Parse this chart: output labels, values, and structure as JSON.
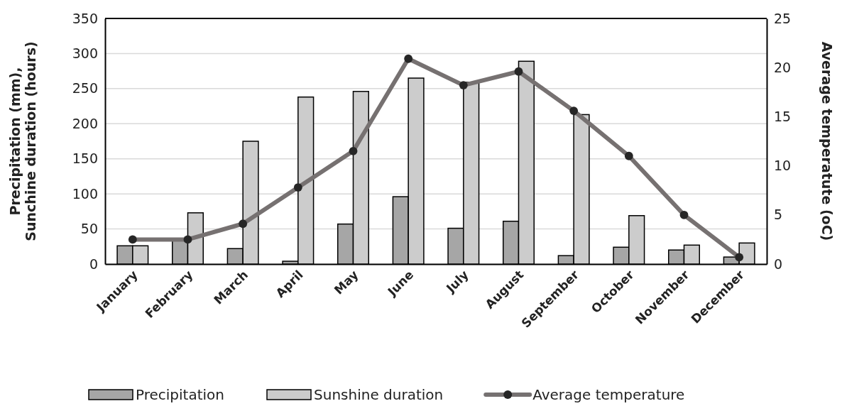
{
  "chart_data": {
    "type": "bar",
    "categories": [
      "January",
      "February",
      "March",
      "April",
      "May",
      "June",
      "July",
      "August",
      "September",
      "October",
      "November",
      "December"
    ],
    "ylabel": "Precipitation (mm), Sunchine duration (hours)",
    "y2label": "Average temperatute (oC)",
    "ylim": [
      0,
      350
    ],
    "yticks": [
      0,
      50,
      100,
      150,
      200,
      250,
      300,
      350
    ],
    "y2lim": [
      0,
      25
    ],
    "y2ticks": [
      0,
      5,
      10,
      15,
      20,
      25
    ],
    "grid": "y",
    "legend": "bottom",
    "marker": "circle",
    "line_style": "solid",
    "series": [
      {
        "name": "Precipitation",
        "color": "#a6a6a6",
        "values": [
          26,
          35,
          22,
          4,
          57,
          96,
          51,
          61,
          12,
          24,
          20,
          10
        ]
      },
      {
        "name": "Sunshine duration",
        "color": "#cccccc",
        "values": [
          26,
          73,
          175,
          238,
          246,
          265,
          259,
          289,
          213,
          69,
          27,
          30
        ]
      },
      {
        "name": "Average temperature",
        "type": "line",
        "axis": "y2",
        "color": "#767171",
        "values": [
          2.5,
          2.5,
          4.1,
          7.8,
          11.5,
          20.9,
          18.2,
          19.6,
          15.6,
          11.0,
          5.0,
          0.7
        ]
      }
    ]
  }
}
